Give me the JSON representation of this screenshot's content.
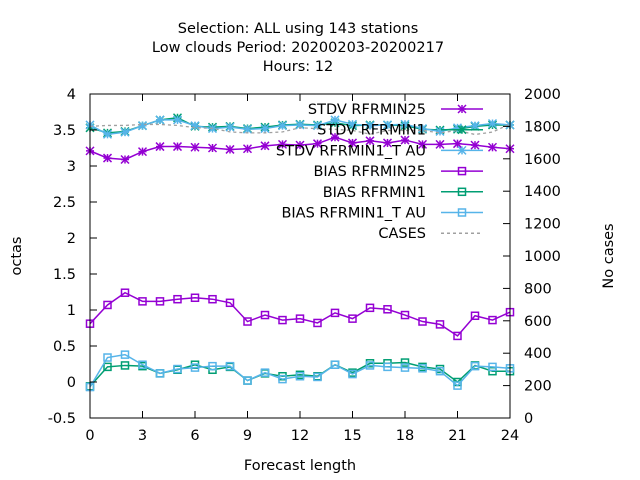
{
  "chart_data": {
    "type": "line",
    "title_lines": [
      "Selection: ALL using   143 stations",
      "Low clouds   Period: 20200203-20200217",
      "Hours:  12"
    ],
    "xlabel": "Forecast length",
    "ylabel": "octas",
    "y2label": "No cases",
    "xlim": [
      0,
      24
    ],
    "ylim": [
      -0.5,
      4
    ],
    "y2lim": [
      0,
      2000
    ],
    "x_ticks": [
      "0",
      "3",
      "6",
      "9",
      "12",
      "15",
      "18",
      "21",
      "24"
    ],
    "y_ticks": [
      "-0.5",
      "0",
      "0.5",
      "1",
      "1.5",
      "2",
      "2.5",
      "3",
      "3.5",
      "4"
    ],
    "y2_ticks": [
      "0",
      "200",
      "400",
      "600",
      "800",
      "1000",
      "1200",
      "1400",
      "1600",
      "1800",
      "2000"
    ],
    "grid": false,
    "legend_position": "top-right",
    "x": [
      0,
      1,
      2,
      3,
      4,
      5,
      6,
      7,
      8,
      9,
      10,
      11,
      12,
      13,
      14,
      15,
      16,
      17,
      18,
      19,
      20,
      21,
      22,
      23,
      24
    ],
    "series": [
      {
        "name": "STDV RFRMIN25",
        "color": "#9400d3",
        "marker": "star",
        "axis": "y",
        "values": [
          3.21,
          3.11,
          3.09,
          3.2,
          3.27,
          3.27,
          3.26,
          3.25,
          3.23,
          3.24,
          3.28,
          3.3,
          3.29,
          3.31,
          3.4,
          3.32,
          3.35,
          3.32,
          3.36,
          3.3,
          3.3,
          3.31,
          3.29,
          3.26,
          3.24
        ]
      },
      {
        "name": "STDV RFRMIN1",
        "color": "#009e73",
        "marker": "star",
        "axis": "y",
        "values": [
          3.53,
          3.46,
          3.48,
          3.56,
          3.64,
          3.67,
          3.55,
          3.54,
          3.55,
          3.52,
          3.54,
          3.57,
          3.58,
          3.57,
          3.6,
          3.56,
          3.57,
          3.57,
          3.56,
          3.51,
          3.5,
          3.51,
          3.55,
          3.57,
          3.57
        ]
      },
      {
        "name": "STDV RFRMIN1_T AU",
        "color": "#56b4e9",
        "marker": "star",
        "axis": "y",
        "values": [
          3.57,
          3.44,
          3.47,
          3.56,
          3.64,
          3.64,
          3.56,
          3.52,
          3.54,
          3.51,
          3.52,
          3.56,
          3.57,
          3.56,
          3.64,
          3.58,
          3.56,
          3.57,
          3.58,
          3.52,
          3.48,
          3.53,
          3.56,
          3.59,
          3.57
        ]
      },
      {
        "name": "BIAS RFRMIN25",
        "color": "#9400d3",
        "marker": "square",
        "axis": "y",
        "values": [
          0.81,
          1.07,
          1.24,
          1.12,
          1.12,
          1.15,
          1.17,
          1.15,
          1.1,
          0.84,
          0.93,
          0.86,
          0.88,
          0.82,
          0.96,
          0.88,
          1.03,
          1.01,
          0.93,
          0.84,
          0.8,
          0.64,
          0.92,
          0.86,
          0.97
        ]
      },
      {
        "name": "BIAS RFRMIN1",
        "color": "#009e73",
        "marker": "square",
        "axis": "y",
        "values": [
          -0.06,
          0.21,
          0.23,
          0.22,
          0.12,
          0.17,
          0.24,
          0.17,
          0.21,
          0.02,
          0.12,
          0.08,
          0.1,
          0.08,
          0.24,
          0.13,
          0.26,
          0.26,
          0.27,
          0.21,
          0.18,
          0.0,
          0.23,
          0.15,
          0.15
        ]
      },
      {
        "name": "BIAS RFRMIN1_T AU",
        "color": "#56b4e9",
        "marker": "square",
        "axis": "y",
        "values": [
          -0.07,
          0.34,
          0.38,
          0.24,
          0.12,
          0.18,
          0.2,
          0.22,
          0.22,
          0.02,
          0.13,
          0.04,
          0.08,
          0.07,
          0.24,
          0.11,
          0.23,
          0.21,
          0.2,
          0.19,
          0.15,
          -0.05,
          0.22,
          0.21,
          0.19
        ]
      },
      {
        "name": "CASES",
        "color": "#a0a0a0",
        "marker": "none",
        "dash": true,
        "axis": "y2",
        "values": [
          1800,
          1806,
          1806,
          1812,
          1812,
          1806,
          1792,
          1788,
          1766,
          1760,
          1760,
          1766,
          1792,
          1786,
          1782,
          1775,
          1752,
          1775,
          1775,
          1775,
          1760,
          1775,
          1750,
          1765,
          1815
        ]
      }
    ]
  }
}
